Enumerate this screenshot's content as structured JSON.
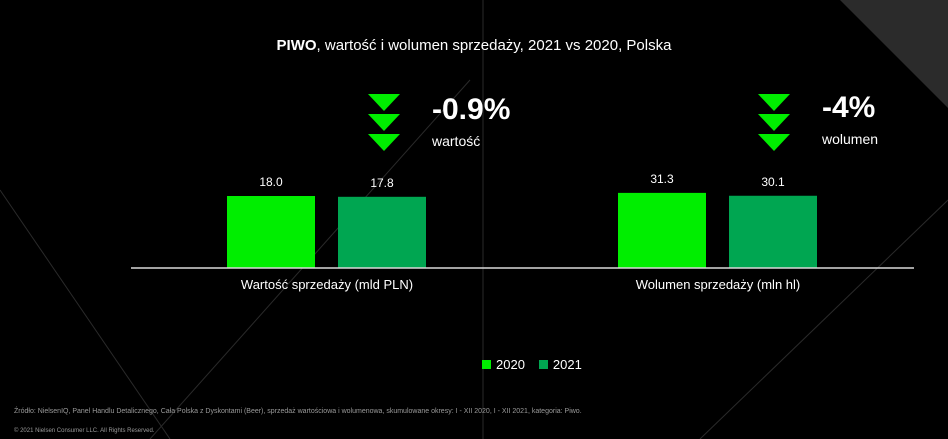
{
  "title": {
    "bold": "PIWO",
    "rest": ", wartość i wolumen sprzedaży, 2021 vs 2020, Polska"
  },
  "changes": [
    {
      "value": "-0.9%",
      "label": "wartość"
    },
    {
      "value": "-4%",
      "label": "wolumen"
    }
  ],
  "chart_data": {
    "type": "bar",
    "grouped_by_category": true,
    "categories": [
      "Wartość sprzedaży (mld PLN)",
      "Wolumen sprzedaży (mln hl)"
    ],
    "series": [
      {
        "name": "2020",
        "values": [
          18.0,
          31.3
        ],
        "color": "#00ee00"
      },
      {
        "name": "2021",
        "values": [
          17.8,
          30.1
        ],
        "color": "#00a651"
      }
    ],
    "data_labels": [
      [
        "18.0",
        "17.8"
      ],
      [
        "31.3",
        "30.1"
      ]
    ],
    "category_scales": [
      [
        0,
        30
      ],
      [
        0,
        50
      ]
    ],
    "legend_position": "bottom-center",
    "grid": false
  },
  "legend": [
    {
      "label": "2020",
      "color": "#00ee00"
    },
    {
      "label": "2021",
      "color": "#00a651"
    }
  ],
  "arrow_color": "#00ee00",
  "source": "Źródło: NielsenIQ, Panel Handlu Detalicznego, Cała Polska z Dyskontami (Beer), sprzedaż wartościowa i wolumenowa, skumulowane okresy: I - XII 2020, I - XII 2021, kategoria: Piwo.",
  "copyright": "© 2021 Nielsen Consumer LLC. All Rights Reserved."
}
